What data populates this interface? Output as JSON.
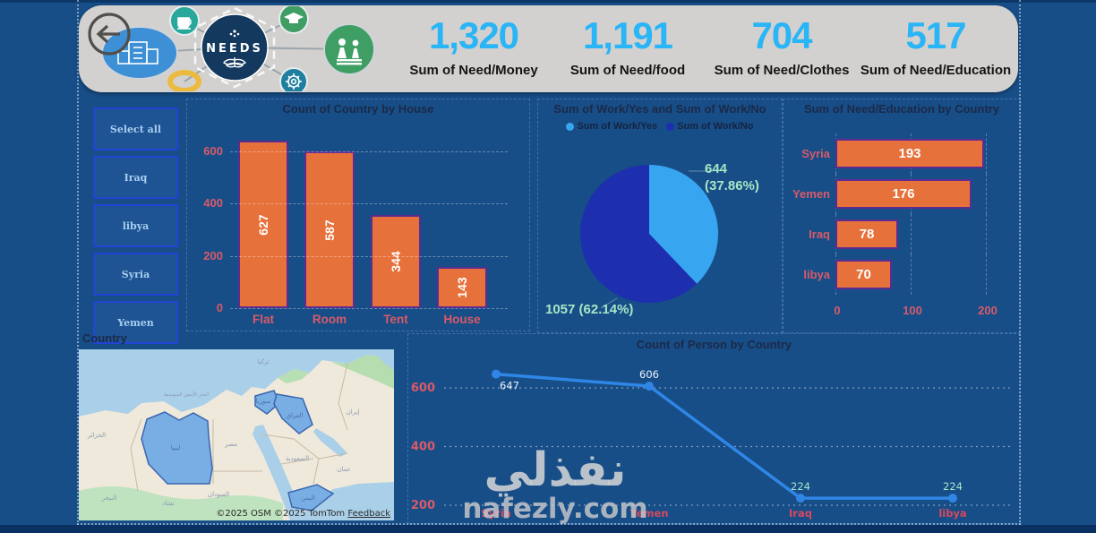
{
  "header": {
    "logo_text": "NEEDS",
    "kpis": [
      {
        "value": "1,320",
        "label": "Sum of Need/Money"
      },
      {
        "value": "1,191",
        "label": "Sum of Need/food"
      },
      {
        "value": "704",
        "label": "Sum of Need/Clothes"
      },
      {
        "value": "517",
        "label": "Sum of Need/Education"
      }
    ]
  },
  "slicer": {
    "items": [
      "Select all",
      "Iraq",
      "libya",
      "Syria",
      "Yemen"
    ]
  },
  "map": {
    "title": "Country",
    "attribution": "©2025 OSM ©2025 TomTom",
    "feedback_link": "Feedback",
    "labels": [
      "تركيا",
      "سوريا",
      "العراق",
      "إيران",
      "الجزائر",
      "ليبيا",
      "مصر",
      "السعودية",
      "عمان",
      "اليمن",
      "السودان",
      "النيجر",
      "تشاد",
      "البحر الأبيض المتوسط"
    ]
  },
  "watermark": {
    "arabic": "نفذلي",
    "domain": "nafezly.com"
  },
  "colors": {
    "background": "#174e88",
    "header_card": "#d3d1cf",
    "kpi_number": "#2ab5f6",
    "bar_fill": "#e7713b",
    "bar_border": "#5e2c91",
    "axis_label": "#d85a68",
    "pie_yes": "#38a5f1",
    "pie_no": "#1d2fae",
    "pie_label": "#a5e7c4",
    "line": "#2f86e6",
    "title": "#1c2947"
  },
  "chart_data": [
    {
      "type": "bar",
      "title": "Count of Country by House",
      "categories": [
        "Flat",
        "Room",
        "Tent",
        "House"
      ],
      "values": [
        627,
        587,
        344,
        143
      ],
      "ylabel": "",
      "xlabel": "",
      "yticks": [
        0,
        200,
        400,
        600
      ],
      "ylim": [
        0,
        600
      ],
      "grid": true
    },
    {
      "type": "pie",
      "title": "Sum of Work/Yes and Sum of Work/No",
      "legend_position": "top",
      "series": [
        {
          "name": "Sum of Work/Yes",
          "value": 644,
          "pct": 37.86,
          "color": "#38a5f1"
        },
        {
          "name": "Sum of Work/No",
          "value": 1057,
          "pct": 62.14,
          "color": "#1d2fae"
        }
      ],
      "labels": {
        "yes_line1": "644",
        "yes_line2": "(37.86%)",
        "no": "1057 (62.14%)"
      }
    },
    {
      "type": "bar",
      "orientation": "horizontal",
      "title": "Sum of Need/Education by Country",
      "categories": [
        "Syria",
        "Yemen",
        "Iraq",
        "libya"
      ],
      "values": [
        193,
        176,
        78,
        70
      ],
      "xticks": [
        0,
        100,
        200
      ],
      "xlim": [
        0,
        220
      ],
      "grid": true
    },
    {
      "type": "line",
      "title": "Count of Person by Country",
      "categories": [
        "Syria",
        "Yemen",
        "Iraq",
        "libya"
      ],
      "values": [
        647,
        606,
        224,
        224
      ],
      "yticks": [
        200,
        400,
        600
      ],
      "ylim": [
        150,
        700
      ],
      "grid": true
    }
  ]
}
